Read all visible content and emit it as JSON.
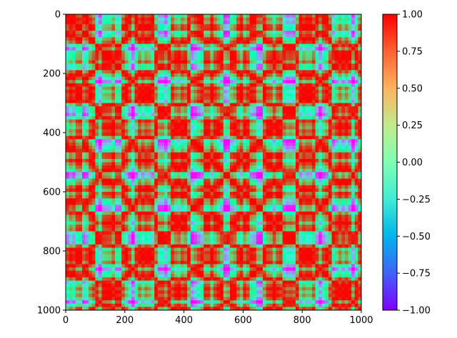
{
  "chart_data": {
    "type": "heatmap",
    "title": "",
    "xlabel": "",
    "ylabel": "",
    "colormap": "rainbow",
    "x_range": [
      0,
      1000
    ],
    "y_range": [
      0,
      1000
    ],
    "y_axis_inverted": true,
    "x_ticks": [
      "0",
      "200",
      "400",
      "600",
      "800",
      "1000"
    ],
    "y_ticks": [
      "0",
      "200",
      "400",
      "600",
      "800",
      "1000"
    ],
    "x_tick_values": [
      0,
      200,
      400,
      600,
      800,
      1000
    ],
    "y_tick_values": [
      0,
      200,
      400,
      600,
      800,
      1000
    ],
    "colorbar": {
      "range": [
        -1.0,
        1.0
      ],
      "ticks": [
        "1.00",
        "0.75",
        "0.50",
        "0.25",
        "0.00",
        "−0.25",
        "−0.50",
        "−0.75",
        "−1.00"
      ],
      "tick_values": [
        1.0,
        0.75,
        0.5,
        0.25,
        0.0,
        -0.25,
        -0.5,
        -0.75,
        -1.0
      ]
    },
    "colors": {
      "low": "#8000ff",
      "mid": "#80ffb4",
      "high": "#ff0000"
    },
    "grid": false
  }
}
